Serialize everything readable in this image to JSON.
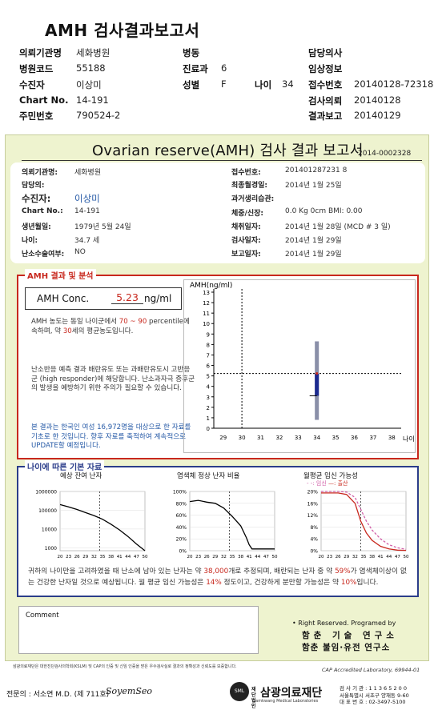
{
  "header": {
    "title": "AMH 검사결과보고서",
    "labels": [
      "의뢰기관명",
      "병원코드",
      "수진자",
      "Chart No.",
      "주민번호",
      "병동",
      "진료과",
      "성별",
      "나이",
      "담당의사",
      "임상정보",
      "접수번호",
      "검사의뢰",
      "결과보고"
    ],
    "values": {
      "institution": "세화병원",
      "hospital_code": "55188",
      "patient": "이상미",
      "chart_no": "14-191",
      "resident_no": "790524-2",
      "department": "6",
      "sex": "F",
      "age": "34",
      "receipt_no": "20140128-72318",
      "request_date": "20140128",
      "report_date": "20140129"
    }
  },
  "report": {
    "title": "Ovarian reserve(AMH) 검사 결과 보고서",
    "number": "2014-0002328",
    "info": {
      "left": [
        {
          "label": "의뢰기관명:",
          "value": "세화병원"
        },
        {
          "label": "담당의:",
          "value": ""
        },
        {
          "label": "수진자:",
          "value": "이상미"
        },
        {
          "label": "Chart No.:",
          "value": "14-191"
        },
        {
          "label": "생년월일:",
          "value": "1979년 5월 24일"
        },
        {
          "label": "나이:",
          "value": "34.7 세"
        },
        {
          "label": "난소수술여부:",
          "value": "NO"
        }
      ],
      "right": [
        {
          "label": "접수번호:",
          "value": "201401287231 8"
        },
        {
          "label": "최종월경일:",
          "value": "2014년 1월 25일"
        },
        {
          "label": "과거생리습관:",
          "value": ""
        },
        {
          "label": "체중/신장:",
          "value": "0.0 Kg          0cm      BMI:       0.00"
        },
        {
          "label": "채취일자:",
          "value": "2014년 1월 28일   (MCD # 3 일)"
        },
        {
          "label": "검사일자:",
          "value": "2014년 1월 29일"
        },
        {
          "label": "보고일자:",
          "value": "2014년 1월 29일"
        }
      ]
    },
    "section1": {
      "title": "AMH 결과 및 분석",
      "conc_label": "AMH Conc.",
      "conc_value": "5.23",
      "conc_unit": "ng/ml",
      "text1_a": "AMH 농도는 동일 나이군에서 ",
      "text1_range": "70 ~ 90",
      "text1_b": " percentile에 속하며, 약 ",
      "text1_age": "30",
      "text1_c": "세의 평균농도입니다.",
      "text2": "난소반응 예측 결과 배란유도 또는 과배란유도시 고반응군 (high responder)에 해당합니다. 난소과자극 증후군의 발생을 예방하기 위한 주의가 필요할 수 있습니다.",
      "text3": "본 결과는 한국인 여성 16,972명을 대상으로 한 자료를 기초로 한 것입니다. 향후 자료를 축적하여 계속적으로 UPDATE할 예정입니다."
    },
    "section2": {
      "title": "나이에 따른 기본 자료",
      "chart_titles": [
        "예상 잔여 난자",
        "염색체 정상 난자 비율",
        "월평균 임신 가능성"
      ],
      "legend": [
        "임신",
        "출산"
      ],
      "text_a": "귀하의 나이만을 고려하였을 때 난소에 남아 있는 난자는 약 ",
      "eggs": "38,000",
      "text_b": "개로 추정되며, 배란되는 난자 중 약 ",
      "normal_pct": "59%",
      "text_c": "가 염색체이상이 없는 건강한 난자일 것으로 예상됩니다. 월 평균 임신 가능성은 ",
      "preg_pct": "14%",
      "text_d": " 정도이고, 건강하게 분만할 가능성은 약 ",
      "birth_pct": "10%",
      "text_e": "입니다."
    },
    "comment_label": "Comment",
    "rights": "• Right Reserved. Programed by",
    "institute1": "함춘 기술 연구소",
    "institute2": "함춘 불임·유전 연구소"
  },
  "footer": {
    "footnote": "삼광의료재단은 대한진단검사의학회(KSLM) 및 CAP의 인증 및 신임 인증을 받은 우수검사실로 결과의 정확성과 신뢰도를 보증합니다.",
    "cap": "CAP Accredited Laboratory, 69944-01",
    "doctor": "전문의 : 서소연 M.D. (제 711호)",
    "signature": "SoyemSeo",
    "lab_prefix": "재단법인",
    "lab_name": "삼광의료재단",
    "lab_en": "Samkwang Medical Laboratories",
    "address": [
      "검 사 기 관 : 1 1 3 6 5 2 0 0",
      "서울특별시 서초구 양재동 9-60",
      "대 표 번 호 : 02-3497-5100"
    ]
  },
  "chart_data": [
    {
      "type": "scatter",
      "title": "",
      "ylabel": "AMH(ng/ml)",
      "xlabel": "나이",
      "x_ticks": [
        29,
        30,
        31,
        32,
        33,
        34,
        35,
        36,
        37,
        38
      ],
      "y_ticks": [
        0,
        1,
        2,
        3,
        4,
        5,
        6,
        7,
        8,
        9,
        10,
        11,
        12,
        13
      ],
      "xlim": [
        28.5,
        38.5
      ],
      "ylim": [
        0,
        13
      ],
      "patient_point": {
        "x": 34,
        "y": 5.23
      },
      "crosshair": {
        "x": 30,
        "y": 5.23
      },
      "range_bar": {
        "x": 34,
        "low": 0.8,
        "high": 8.3,
        "iqr_low": 3.1,
        "iqr_high": 5.2,
        "marker": 3.1
      }
    },
    {
      "type": "line",
      "title": "예상 잔여 난자",
      "log_y": true,
      "y_ticks": [
        1000,
        10000,
        100000,
        1000000
      ],
      "y_tick_labels": [
        "1000",
        "10000",
        "100000",
        "1000000"
      ],
      "x_ticks": [
        20,
        23,
        26,
        29,
        32,
        35,
        38,
        41,
        44,
        47,
        50
      ],
      "marker_x": 34,
      "series": [
        {
          "x": [
            20,
            23,
            26,
            29,
            32,
            35,
            38,
            41,
            44,
            47,
            50
          ],
          "values": [
            200000,
            150000,
            110000,
            75000,
            52000,
            33000,
            18000,
            9000,
            4000,
            1600,
            700
          ]
        }
      ]
    },
    {
      "type": "line",
      "title": "염색체 정상 난자 비율",
      "y_ticks": [
        0,
        20,
        40,
        60,
        80,
        100
      ],
      "y_tick_labels": [
        "0%",
        "20%",
        "40%",
        "60%",
        "80%",
        "100%"
      ],
      "x_ticks": [
        20,
        23,
        26,
        29,
        32,
        35,
        38,
        41,
        44,
        47,
        50
      ],
      "marker_x": 34,
      "series": [
        {
          "x": [
            20,
            23,
            26,
            29,
            32,
            35,
            38,
            40,
            41,
            42,
            44,
            47,
            50
          ],
          "values": [
            83,
            85,
            82,
            80,
            72,
            58,
            42,
            22,
            10,
            3,
            3,
            3,
            3
          ]
        }
      ]
    },
    {
      "type": "line",
      "title": "월평균 임신 가능성",
      "y_ticks": [
        0,
        4,
        8,
        12,
        16,
        20
      ],
      "y_tick_labels": [
        "0%",
        "4%",
        "8%",
        "12%",
        "16%",
        "20%"
      ],
      "x_ticks": [
        20,
        23,
        26,
        29,
        32,
        35,
        38,
        41,
        44,
        47,
        50
      ],
      "marker_x": 34,
      "series": [
        {
          "name": "임신",
          "color": "#d15fa8",
          "x": [
            20,
            23,
            26,
            29,
            32,
            34,
            36,
            38,
            41,
            44,
            47,
            50
          ],
          "values": [
            20,
            20,
            20,
            19.8,
            18,
            14,
            10,
            7,
            4,
            2,
            1,
            0.5
          ]
        },
        {
          "name": "출산",
          "color": "#c8281e",
          "x": [
            20,
            23,
            26,
            29,
            32,
            34,
            36,
            38,
            41,
            44,
            47,
            50
          ],
          "values": [
            19.5,
            19.5,
            19.5,
            19,
            16,
            10,
            6,
            3.5,
            1.5,
            0.6,
            0.2,
            0.1
          ]
        }
      ]
    }
  ]
}
